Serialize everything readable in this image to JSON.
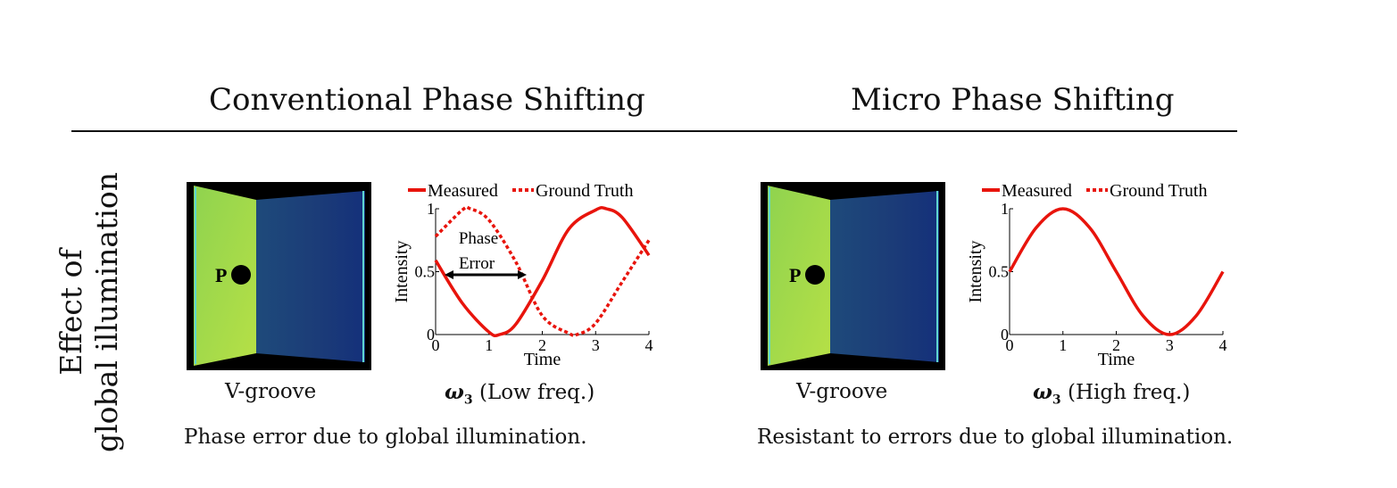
{
  "left_title": "Conventional Phase Shifting",
  "right_title": "Micro Phase Shifting",
  "row_label_line1": "Effect of",
  "row_label_line2": "global illumination",
  "left_panel": {
    "image_point_label": "P",
    "image_caption": "V-groove",
    "plot_caption_symbol": "ω",
    "plot_caption_sub": "3",
    "plot_caption_text": " (Low freq.)",
    "annotation_line1": "Phase",
    "annotation_line2": "Error",
    "description": "Phase error due to global illumination."
  },
  "right_panel": {
    "image_point_label": "P",
    "image_caption": "V-groove",
    "plot_caption_symbol": "ω",
    "plot_caption_sub": "3",
    "plot_caption_text": " (High freq.)",
    "description": "Resistant to errors due to global illumination."
  },
  "legend": {
    "measured": "Measured",
    "ground_truth": "Ground Truth"
  },
  "colors": {
    "curve": "#e8140c",
    "wall_left": "#9dd84a",
    "wall_right": "#1b3e76",
    "frame": "#000000"
  },
  "chart_data": [
    {
      "type": "line",
      "xlabel": "Time",
      "ylabel": "Intensity",
      "xlim": [
        0,
        4
      ],
      "ylim": [
        0,
        1
      ],
      "xticks": [
        "0",
        "1",
        "2",
        "3",
        "4"
      ],
      "yticks": [
        "0",
        "0.5",
        "1"
      ],
      "series": [
        {
          "name": "Measured",
          "style": "solid",
          "x": [
            0,
            0.5,
            1,
            1.2,
            1.5,
            2,
            2.5,
            3,
            3.2,
            3.5,
            4
          ],
          "y": [
            0.59,
            0.25,
            0.02,
            0.0,
            0.08,
            0.43,
            0.84,
            0.99,
            1.0,
            0.93,
            0.63
          ]
        },
        {
          "name": "Ground Truth",
          "style": "dotted",
          "x": [
            0,
            0.5,
            0.65,
            1,
            1.5,
            2,
            2.5,
            2.65,
            3,
            3.5,
            4
          ],
          "y": [
            0.78,
            0.99,
            1.0,
            0.91,
            0.58,
            0.15,
            0.01,
            0.0,
            0.09,
            0.42,
            0.75
          ]
        }
      ]
    },
    {
      "type": "line",
      "xlabel": "Time",
      "ylabel": "Intensity",
      "xlim": [
        0,
        4
      ],
      "ylim": [
        0,
        1
      ],
      "xticks": [
        "0",
        "1",
        "2",
        "3",
        "4"
      ],
      "yticks": [
        "0",
        "0.5",
        "1"
      ],
      "series": [
        {
          "name": "Measured",
          "style": "solid",
          "x": [
            0,
            0.5,
            1,
            1.5,
            2,
            2.5,
            3,
            3.5,
            4
          ],
          "y": [
            0.5,
            0.85,
            1.0,
            0.85,
            0.5,
            0.15,
            0.0,
            0.15,
            0.5
          ]
        }
      ]
    }
  ]
}
